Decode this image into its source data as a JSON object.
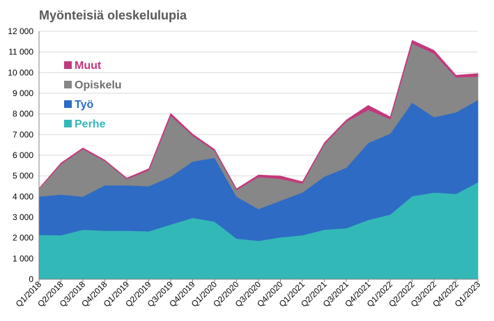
{
  "chart_data": {
    "type": "area",
    "stacked": true,
    "title": "Myönteisiä oleskelulupia",
    "xlabel": "",
    "ylabel": "",
    "ylim": [
      0,
      12000
    ],
    "yticks": [
      0,
      1000,
      2000,
      3000,
      4000,
      5000,
      6000,
      7000,
      8000,
      9000,
      10000,
      11000,
      12000
    ],
    "ytick_labels": [
      "0",
      "1 000",
      "2 000",
      "3 000",
      "4 000",
      "5 000",
      "6 000",
      "7 000",
      "8 000",
      "9 000",
      "10 000",
      "11 000",
      "12 000"
    ],
    "grid": true,
    "legend_position": "top-left",
    "categories": [
      "Q1/2018",
      "Q2/2018",
      "Q3/2018",
      "Q4/2018",
      "Q1/2019",
      "Q2/2019",
      "Q3/2019",
      "Q4/2019",
      "Q1/2020",
      "Q2/2020",
      "Q3/2020",
      "Q4/2020",
      "Q1/2021",
      "Q2/2021",
      "Q3/2021",
      "Q4/2021",
      "Q1/2022",
      "Q2/2022",
      "Q3/2022",
      "Q4/2022",
      "Q1/2023"
    ],
    "series": [
      {
        "name": "Perhe",
        "color": "#33b8b8",
        "values": [
          2150,
          2130,
          2400,
          2350,
          2350,
          2320,
          2650,
          2970,
          2790,
          1970,
          1860,
          2030,
          2130,
          2400,
          2470,
          2870,
          3130,
          4020,
          4200,
          4130,
          4700
        ]
      },
      {
        "name": "Työ",
        "color": "#2e6bc4",
        "values": [
          1850,
          1970,
          1600,
          2200,
          2200,
          2180,
          2320,
          2730,
          3090,
          2030,
          1540,
          1770,
          2070,
          2570,
          2930,
          3730,
          3920,
          4530,
          3650,
          3950,
          3980
        ]
      },
      {
        "name": "Opiskelu",
        "color": "#878787",
        "values": [
          370,
          1470,
          2300,
          1170,
          300,
          770,
          2950,
          1250,
          340,
          320,
          1550,
          1060,
          430,
          1570,
          2230,
          1600,
          700,
          2860,
          3070,
          1690,
          1130
        ]
      },
      {
        "name": "Muut",
        "color": "#c2397d",
        "values": [
          30,
          60,
          60,
          50,
          50,
          80,
          110,
          80,
          70,
          60,
          100,
          140,
          90,
          70,
          80,
          220,
          110,
          160,
          160,
          110,
          150
        ]
      }
    ]
  }
}
